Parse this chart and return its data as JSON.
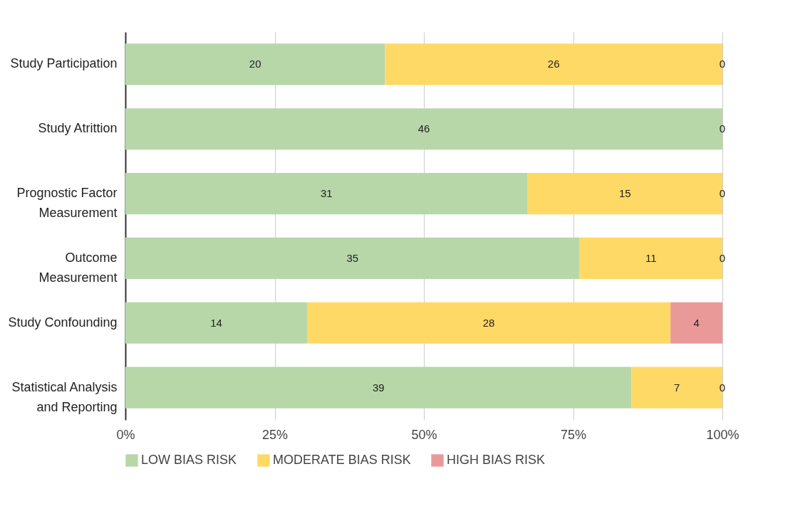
{
  "chart_data": {
    "type": "bar",
    "orientation": "horizontal",
    "stacked": true,
    "categories": [
      "Study Participation",
      "Study Atrittion",
      "Prognostic Factor Measurement",
      "Outcome Measurement",
      "Study Confounding",
      "Statistical Analysis and Reporting"
    ],
    "series": [
      {
        "name": "LOW BIAS RISK",
        "color": "#b7d7a8",
        "values": [
          20,
          46,
          31,
          35,
          14,
          39
        ],
        "value_labels": [
          "20",
          "46",
          "31",
          "35",
          "14",
          "39"
        ]
      },
      {
        "name": "MODERATE BIAS RISK",
        "color": "#ffd966",
        "values": [
          26,
          0,
          15,
          11,
          28,
          7
        ],
        "value_labels": [
          "26",
          null,
          "15",
          "11",
          "28",
          "7"
        ]
      },
      {
        "name": "HIGH BIAS RISK",
        "color": "#ea9999",
        "values": [
          0,
          0,
          0,
          0,
          4,
          0
        ],
        "value_labels": [
          "0",
          "0",
          "0",
          "0",
          "4",
          "0"
        ]
      }
    ],
    "annotations": [
      "0%",
      "25%",
      "50%",
      "75%",
      "100%"
    ],
    "grid": "x",
    "legend": "bottom"
  }
}
